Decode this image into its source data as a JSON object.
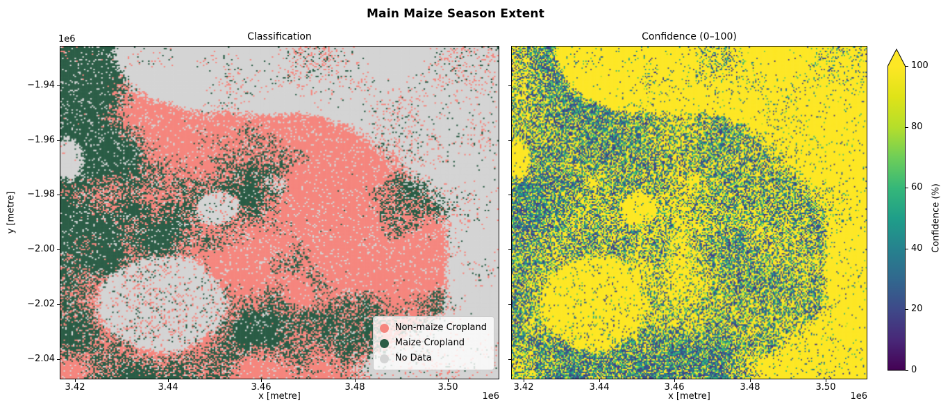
{
  "figure": {
    "title": "Main Maize Season Extent",
    "background": "#ffffff",
    "text_color": "#000000"
  },
  "chart_data": [
    {
      "type": "heatmap",
      "panel": "classification",
      "title": "Classification",
      "xlabel": "x [metre]",
      "ylabel": "y [metre]",
      "axis_offset_text": "1e6",
      "xlim": [
        3416900,
        3510900
      ],
      "ylim": [
        -2047200,
        -1925800
      ],
      "xticks": [
        3420000,
        3440000,
        3460000,
        3480000,
        3500000
      ],
      "xtick_labels": [
        "3.42",
        "3.44",
        "3.46",
        "3.48",
        "3.50"
      ],
      "yticks": [
        -1940000,
        -1960000,
        -1980000,
        -2000000,
        -2020000,
        -2040000
      ],
      "ytick_labels": [
        "−1.94",
        "−1.96",
        "−1.98",
        "−2.00",
        "−2.02",
        "−2.04"
      ],
      "grid": false,
      "categories": [
        "Non-maize Cropland",
        "Maize Cropland",
        "No Data"
      ],
      "category_colors": [
        "#f5867e",
        "#2b5d46",
        "#d4d4d4"
      ],
      "legend_position": "lower right",
      "note": "Speckled categorical raster: salmon = non-maize cropland, dark green = maize cropland, light gray = no data; large no-data blob center-left and gray expanse across the top-right."
    },
    {
      "type": "heatmap",
      "panel": "confidence",
      "title": "Confidence (0–100)",
      "xlabel": "x [metre]",
      "ylabel": "",
      "axis_offset_text": "1e6",
      "xlim": [
        3416900,
        3510900
      ],
      "ylim": [
        -2047200,
        -1925800
      ],
      "xticks": [
        3420000,
        3440000,
        3460000,
        3480000,
        3500000
      ],
      "xtick_labels": [
        "3.42",
        "3.44",
        "3.46",
        "3.48",
        "3.50"
      ],
      "yticks": [
        -1940000,
        -1960000,
        -1980000,
        -2000000,
        -2020000,
        -2040000
      ],
      "grid": false,
      "colormap": "viridis",
      "value_range": [
        0,
        100
      ],
      "high_color": "#fde725",
      "speckle_palette": [
        [
          0.15,
          "#443983"
        ],
        [
          0.35,
          "#3b528b"
        ],
        [
          0.55,
          "#31688e"
        ],
        [
          0.72,
          "#21918c"
        ],
        [
          0.87,
          "#35b779"
        ],
        [
          0.95,
          "#5ec962"
        ],
        [
          1.0,
          "#a0da39"
        ]
      ],
      "viridis_stops": [
        [
          0.0,
          "#440154"
        ],
        [
          0.1,
          "#482878"
        ],
        [
          0.2,
          "#3e4989"
        ],
        [
          0.3,
          "#31688e"
        ],
        [
          0.4,
          "#26828e"
        ],
        [
          0.5,
          "#1f9e89"
        ],
        [
          0.6,
          "#35b779"
        ],
        [
          0.7,
          "#6ece58"
        ],
        [
          0.8,
          "#b5de2b"
        ],
        [
          0.9,
          "#dfe318"
        ],
        [
          1.0,
          "#fde725"
        ]
      ],
      "colorbar": {
        "label": "Confidence (%)",
        "ticks": [
          0,
          20,
          40,
          60,
          80,
          100
        ],
        "tick_labels": [
          "0",
          "20",
          "40",
          "60",
          "80",
          "100"
        ],
        "extend": "max"
      },
      "note": "Mostly ~100 (yellow) with dense speckled low-to-mid confidence (blue/teal/green, ~10–60) over cropland areas; no-data regions render solid yellow."
    }
  ],
  "legend": {
    "items": [
      {
        "label": "Non-maize Cropland",
        "color": "#f5867e"
      },
      {
        "label": "Maize Cropland",
        "color": "#2b5d46"
      },
      {
        "label": "No Data",
        "color": "#d4d4d4"
      }
    ]
  }
}
